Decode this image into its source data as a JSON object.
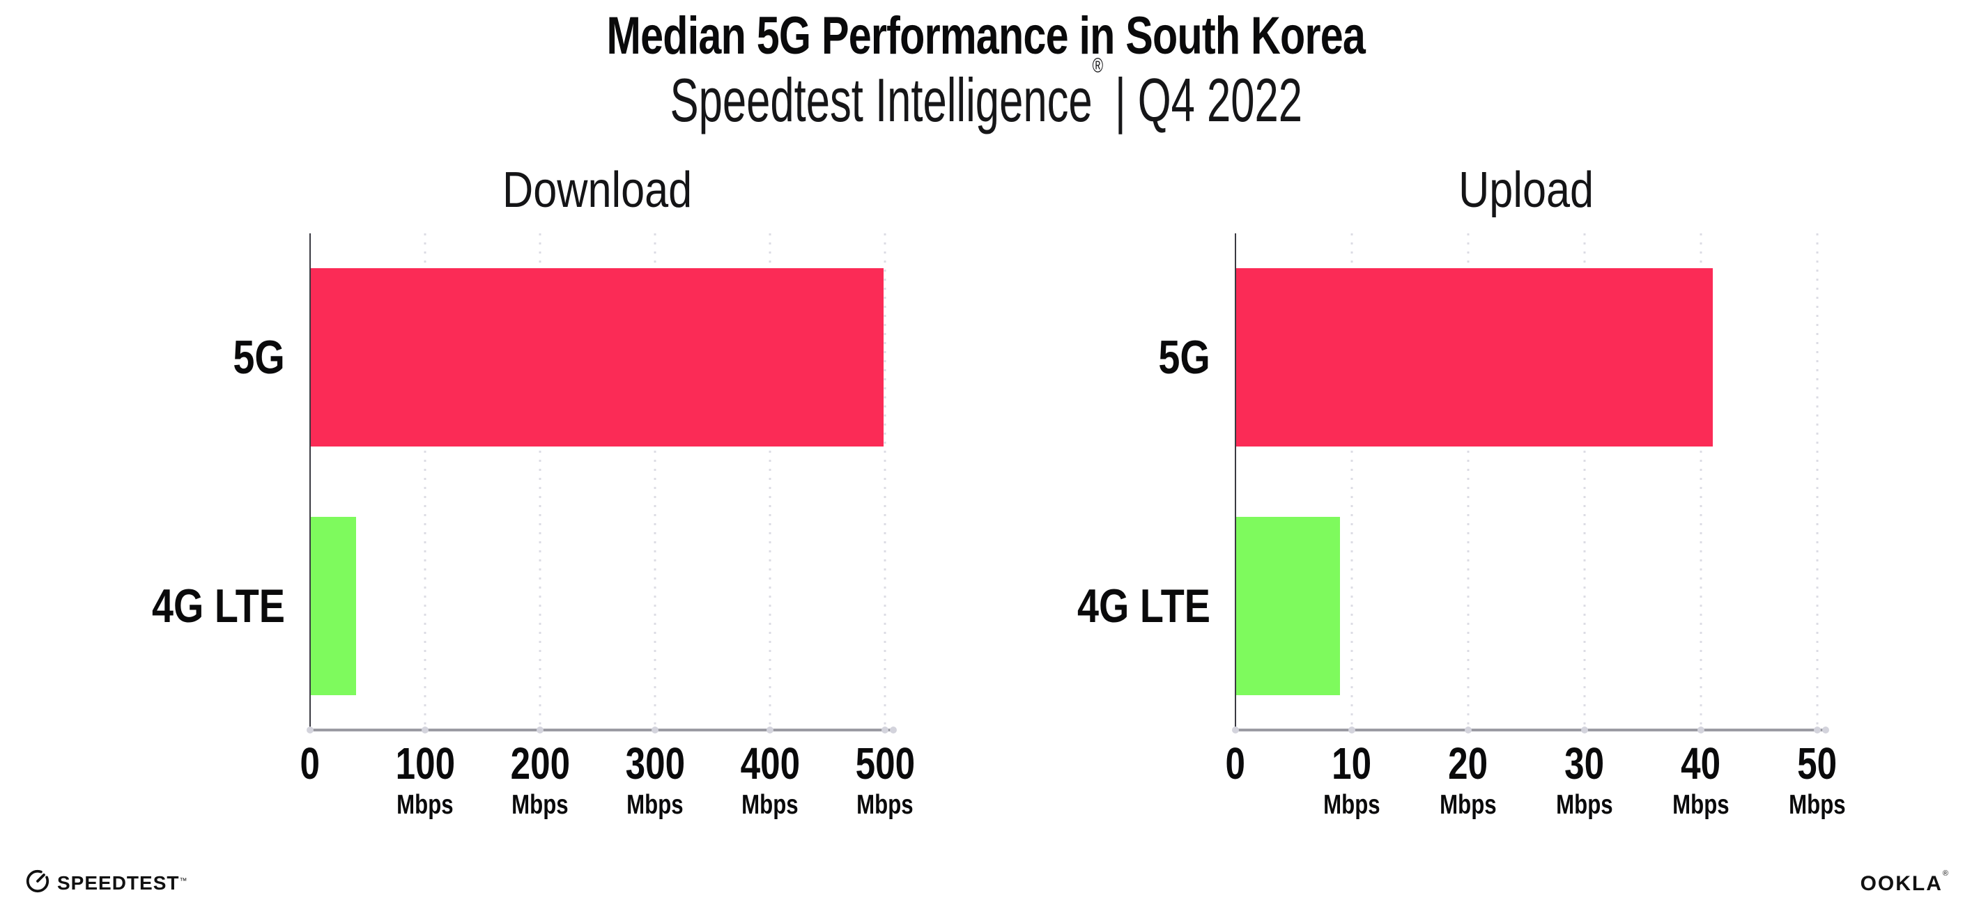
{
  "header": {
    "title": "Median 5G Performance in South Korea",
    "subtitle": {
      "brand": "Speedtest Intelligence",
      "registered": "®",
      "separator": "|",
      "period": "Q4 2022"
    }
  },
  "footer": {
    "speedtest_wordmark": "SPEEDTEST",
    "speedtest_tm": "™",
    "speedtest_icon": "gauge-icon",
    "ookla_wordmark": "OOKLA",
    "ookla_reg": "®"
  },
  "colors": {
    "bar_5g": "#FB2B56",
    "bar_4g_lte": "#7EFA5D",
    "gridline_dot": "#DCDCE4",
    "x_axis_line": "#9B9BA3",
    "y_axis_line": "#3A3A42",
    "tick_dot": "#D3D3DC",
    "text": "#0A0A0B"
  },
  "chart_data": [
    {
      "type": "bar",
      "orientation": "horizontal",
      "title": "Download",
      "categories": [
        "5G",
        "4G LTE"
      ],
      "values": [
        499,
        40
      ],
      "unit": "Mbps",
      "xlim": [
        0,
        500
      ],
      "xticks": [
        0,
        100,
        200,
        300,
        400,
        500
      ],
      "xtick_unit": "Mbps",
      "bar_colors": [
        "#FB2B56",
        "#7EFA5D"
      ],
      "grid": "dotted-vertical",
      "legend": "none"
    },
    {
      "type": "bar",
      "orientation": "horizontal",
      "title": "Upload",
      "categories": [
        "5G",
        "4G LTE"
      ],
      "values": [
        41,
        9
      ],
      "unit": "Mbps",
      "xlim": [
        0,
        50
      ],
      "xticks": [
        0,
        10,
        20,
        30,
        40,
        50
      ],
      "xtick_unit": "Mbps",
      "bar_colors": [
        "#FB2B56",
        "#7EFA5D"
      ],
      "grid": "dotted-vertical",
      "legend": "none"
    }
  ]
}
